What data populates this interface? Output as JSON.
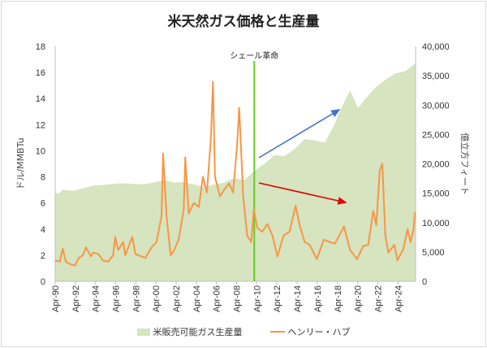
{
  "title": "米天然ガス価格と生産量",
  "chart_data": {
    "type": "line+area",
    "title": "米天然ガス価格と生産量",
    "ylabel_left": "ドル/MMBTu",
    "ylabel_right": "億立方フィート",
    "ylim_left": [
      0,
      18
    ],
    "ylim_right": [
      0,
      40000
    ],
    "yticks_left": [
      "0",
      "2",
      "4",
      "6",
      "8",
      "10",
      "12",
      "14",
      "16",
      "18"
    ],
    "yticks_right": [
      "0",
      "5,000",
      "10,000",
      "15,000",
      "20,000",
      "25,000",
      "30,000",
      "35,000",
      "40,000"
    ],
    "xticks": [
      "Apr-90",
      "Apr-92",
      "Apr-94",
      "Apr-96",
      "Apr-98",
      "Apr-00",
      "Apr-02",
      "Apr-04",
      "Apr-06",
      "Apr-08",
      "Apr-10",
      "Apr-12",
      "Apr-14",
      "Apr-16",
      "Apr-18",
      "Apr-20",
      "Apr-22",
      "Apr-24"
    ],
    "annotation": {
      "label": "シェール革命",
      "x": 2010.0
    },
    "legend": "bottom",
    "colors": {
      "production": "#d6e4bf",
      "price": "#f79646",
      "shale_line": "#66cc22",
      "up_arrow": "#4472c4",
      "down_arrow": "#e00000"
    },
    "series": [
      {
        "name": "米販売可能ガス生産量",
        "axis": "right",
        "kind": "area",
        "x": [
          1990.25,
          1990.6,
          1991,
          1992,
          1993,
          1994,
          1995,
          1996,
          1997,
          1998,
          1999,
          2000,
          2001,
          2002,
          2003,
          2004,
          2005,
          2006,
          2007,
          2008,
          2009,
          2010,
          2011,
          2012,
          2013,
          2014,
          2015,
          2016,
          2017,
          2017.9,
          2018.5,
          2019.5,
          2020.3,
          2021,
          2022,
          2023,
          2024,
          2025,
          2025.95
        ],
        "values": [
          15100,
          14900,
          15600,
          15400,
          15800,
          16300,
          16400,
          16600,
          16700,
          16600,
          16500,
          16800,
          17200,
          16800,
          16900,
          16500,
          16000,
          16500,
          16800,
          17600,
          17200,
          18800,
          20000,
          21500,
          21300,
          22500,
          24200,
          24000,
          23600,
          26500,
          29000,
          32500,
          29500,
          31000,
          33000,
          34300,
          35400,
          35800,
          37000
        ]
      },
      {
        "name": "ヘンリー・ハブ",
        "axis": "left",
        "kind": "line",
        "x": [
          1990.25,
          1990.7,
          1991.0,
          1991.3,
          1991.8,
          1992.2,
          1992.6,
          1993.0,
          1993.3,
          1993.8,
          1994.0,
          1994.5,
          1995.0,
          1995.5,
          1996.0,
          1996.2,
          1996.5,
          1997.0,
          1997.2,
          1997.9,
          1998.2,
          1998.8,
          1999.2,
          1999.8,
          2000.3,
          2000.8,
          2000.95,
          2001.3,
          2001.7,
          2002.0,
          2002.5,
          2003.0,
          2003.15,
          2003.5,
          2004.0,
          2004.5,
          2004.9,
          2005.3,
          2005.7,
          2005.9,
          2006.1,
          2006.6,
          2007.0,
          2007.5,
          2007.9,
          2008.3,
          2008.5,
          2008.9,
          2009.3,
          2009.7,
          2009.95,
          2010.3,
          2010.8,
          2011.3,
          2011.8,
          2012.3,
          2012.9,
          2013.5,
          2014.1,
          2014.5,
          2015.0,
          2015.5,
          2016.2,
          2016.9,
          2017.5,
          2018.0,
          2018.9,
          2019.5,
          2020.2,
          2020.8,
          2021.3,
          2021.8,
          2022.1,
          2022.45,
          2022.7,
          2023.0,
          2023.3,
          2023.9,
          2024.2,
          2024.8,
          2025.2,
          2025.5,
          2025.8,
          2025.95
        ],
        "values": [
          1.6,
          1.5,
          2.5,
          1.5,
          1.3,
          1.2,
          1.8,
          2.0,
          2.6,
          1.9,
          2.2,
          2.1,
          1.6,
          1.5,
          2.0,
          3.4,
          2.4,
          3.0,
          2.0,
          3.4,
          2.1,
          1.9,
          1.8,
          2.6,
          3.0,
          5.0,
          9.8,
          5.0,
          2.0,
          2.3,
          3.2,
          5.5,
          9.5,
          5.2,
          6.0,
          5.7,
          8.0,
          6.8,
          11.0,
          15.3,
          8.0,
          6.5,
          7.0,
          7.5,
          6.8,
          10.5,
          13.3,
          6.5,
          3.5,
          3.0,
          5.5,
          4.1,
          3.8,
          4.4,
          3.5,
          1.9,
          3.5,
          3.8,
          5.8,
          4.3,
          3.0,
          2.8,
          1.7,
          3.2,
          3.0,
          2.9,
          4.2,
          2.4,
          1.7,
          2.7,
          2.8,
          5.4,
          4.3,
          8.5,
          9.0,
          3.5,
          2.2,
          2.8,
          1.6,
          2.5,
          4.0,
          3.0,
          4.0,
          5.3
        ]
      }
    ]
  }
}
